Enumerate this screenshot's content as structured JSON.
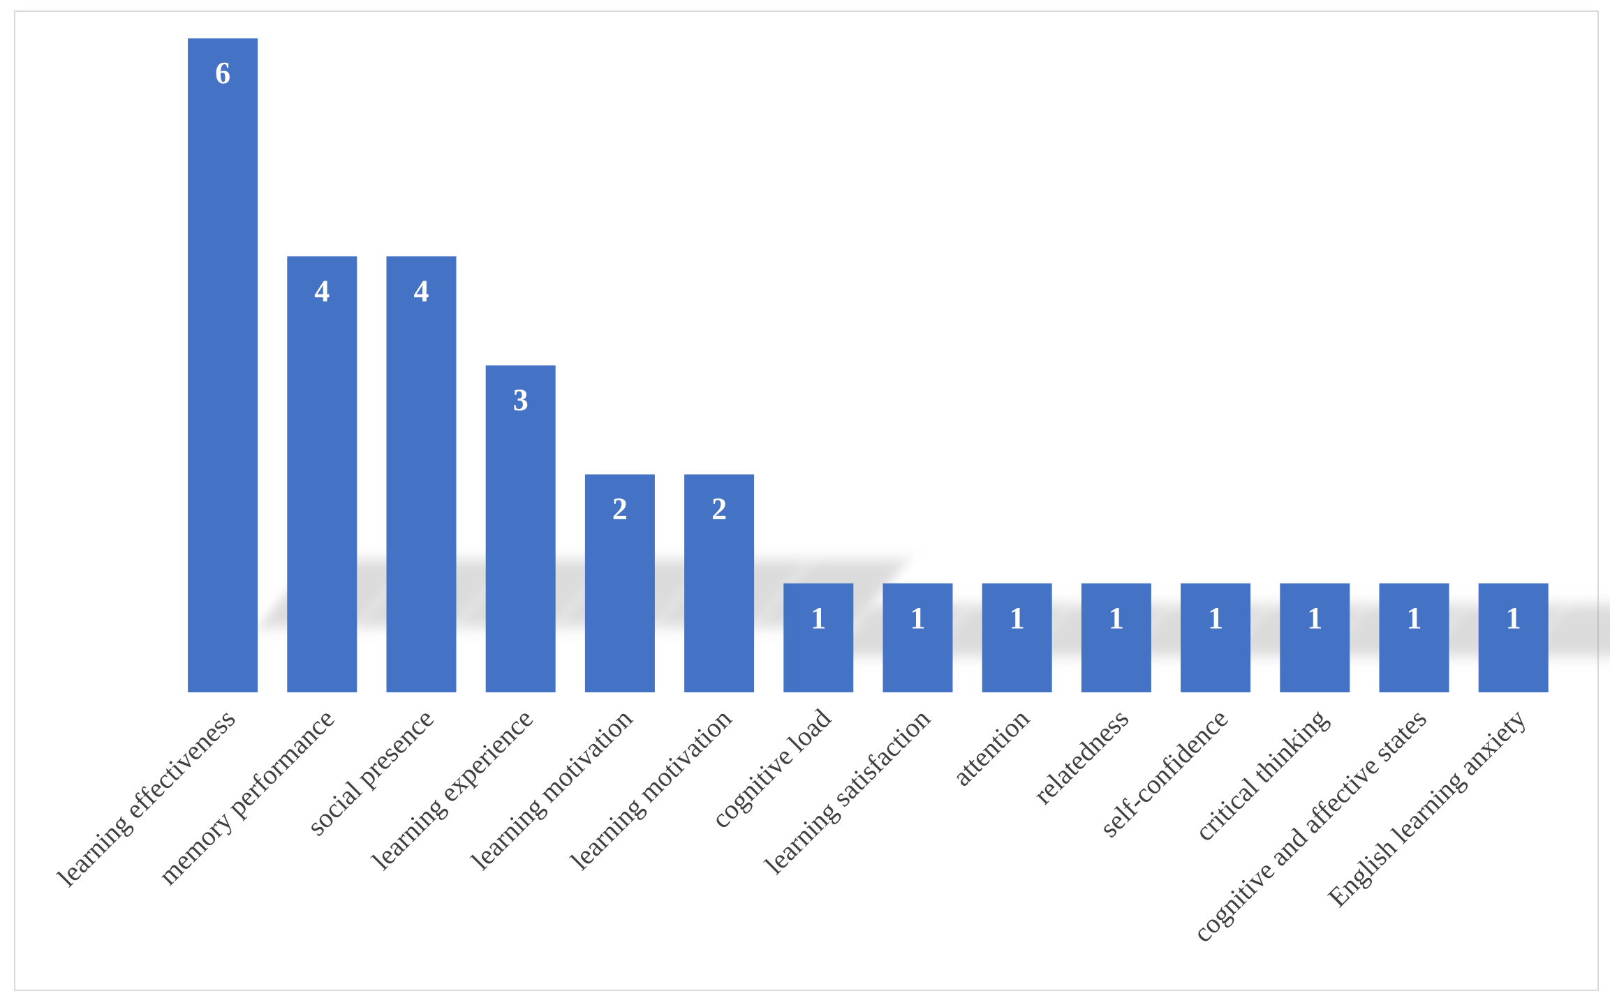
{
  "chart_data": {
    "type": "bar",
    "title": "",
    "xlabel": "",
    "ylabel": "",
    "ylim": [
      0,
      6
    ],
    "grid": false,
    "legend": "none",
    "data_labels": true,
    "bar_color": "#4472C4",
    "label_color": "#FFFFFF",
    "tick_label_color": "#404040",
    "categories": [
      "learning effectiveness",
      "memory performance",
      "social presence",
      "learning experience",
      "learning motivation",
      "learning motivation",
      "cognitive load",
      "learning satisfaction",
      "attention",
      "relatedness",
      "self-confidence",
      "critical thinking",
      "cognitive and affective states",
      "English learning anxiety"
    ],
    "values": [
      6,
      4,
      4,
      3,
      2,
      2,
      1,
      1,
      1,
      1,
      1,
      1,
      1,
      1
    ]
  }
}
